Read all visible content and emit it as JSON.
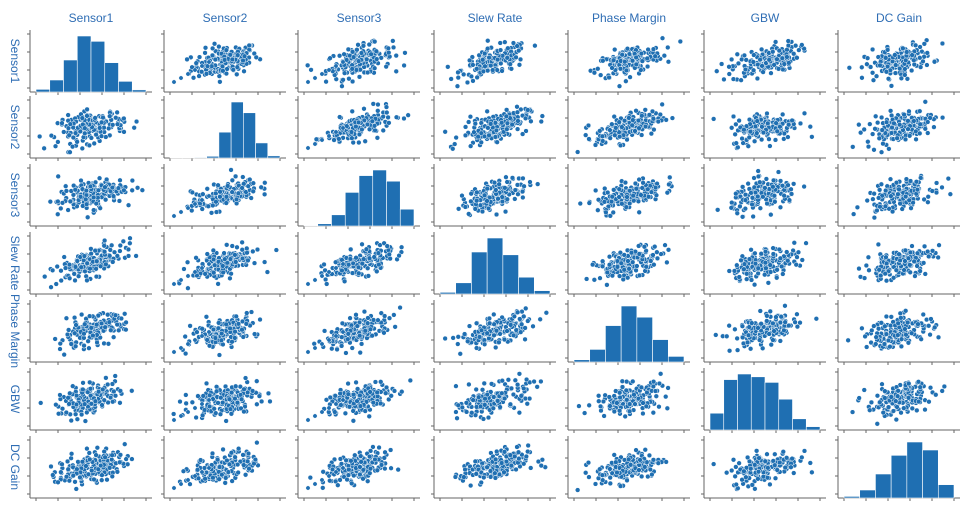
{
  "chart_data": {
    "type": "scatter",
    "variables": [
      "Sensor1",
      "Sensor2",
      "Sensor3",
      "Slew Rate",
      "Phase Margin",
      "GBW",
      "DC Gain"
    ],
    "diagonal": "histogram",
    "off_diagonal": "scatter",
    "point_color": "#1f6fb2",
    "point_edge_color": "#ffffff",
    "bar_color": "#1f6fb2",
    "label_color": "#2e6db4",
    "correlation": [
      [
        1.0,
        0.35,
        0.45,
        0.55,
        0.55,
        0.5,
        0.4
      ],
      [
        0.35,
        1.0,
        0.6,
        0.55,
        0.55,
        0.3,
        0.45
      ],
      [
        0.45,
        0.6,
        1.0,
        0.6,
        0.6,
        0.35,
        0.5
      ],
      [
        0.55,
        0.55,
        0.6,
        1.0,
        0.55,
        0.5,
        0.4
      ],
      [
        0.55,
        0.55,
        0.6,
        0.55,
        1.0,
        0.4,
        0.45
      ],
      [
        0.5,
        0.3,
        0.35,
        0.5,
        0.4,
        1.0,
        0.45
      ],
      [
        0.4,
        0.45,
        0.5,
        0.4,
        0.45,
        0.45,
        1.0
      ]
    ],
    "histograms": [
      {
        "name": "Sensor1",
        "counts": [
          10,
          45,
          120,
          210,
          190,
          110,
          40,
          8
        ]
      },
      {
        "name": "Sensor2",
        "counts": [
          1,
          2,
          3,
          8,
          120,
          260,
          210,
          70,
          10
        ]
      },
      {
        "name": "Sensor3",
        "counts": [
          2,
          8,
          40,
          120,
          180,
          200,
          160,
          60
        ]
      },
      {
        "name": "Slew Rate",
        "counts": [
          6,
          40,
          150,
          200,
          140,
          60,
          12
        ]
      },
      {
        "name": "Phase Margin",
        "counts": [
          8,
          45,
          130,
          200,
          160,
          80,
          20
        ]
      },
      {
        "name": "GBW",
        "counts": [
          60,
          180,
          200,
          190,
          170,
          110,
          40,
          12
        ]
      },
      {
        "name": "DC Gain",
        "counts": [
          6,
          30,
          90,
          160,
          210,
          180,
          50
        ]
      }
    ]
  }
}
